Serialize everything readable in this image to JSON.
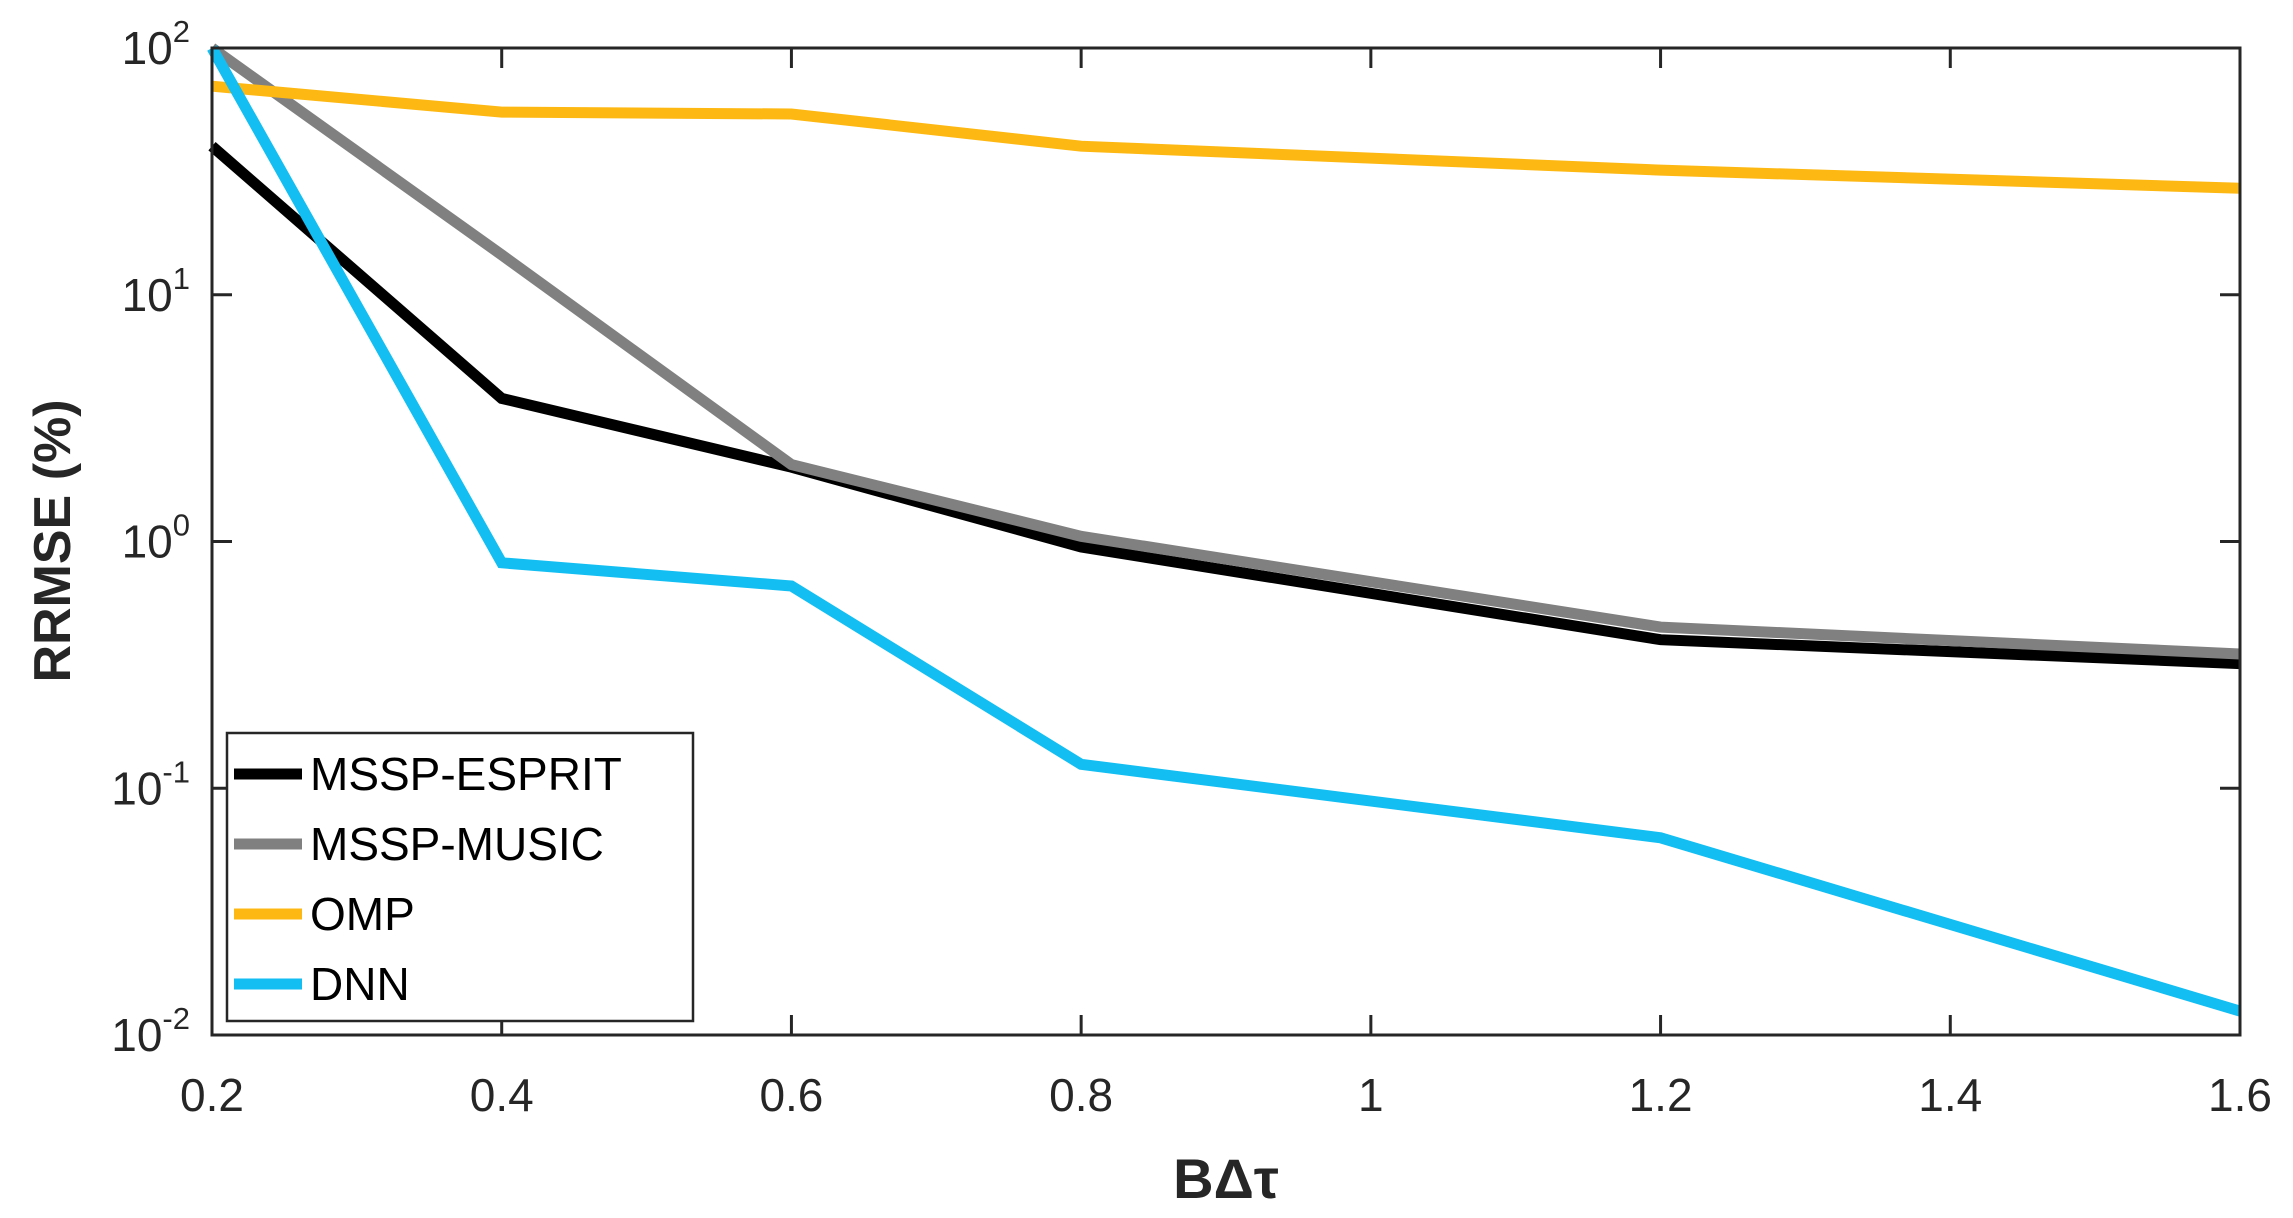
{
  "chart_data": {
    "type": "line",
    "title": "",
    "xlabel": "BΔτ",
    "ylabel": "RRMSE (%)",
    "y_scale": "log",
    "xlim": [
      0.2,
      1.6
    ],
    "ylim": [
      0.01,
      100
    ],
    "x": [
      0.2,
      0.4,
      0.6,
      0.8,
      1.2,
      1.6
    ],
    "x_ticks": [
      "0.2",
      "0.4",
      "0.6",
      "0.8",
      "1",
      "1.2",
      "1.4",
      "1.6"
    ],
    "x_tick_values": [
      0.2,
      0.4,
      0.6,
      0.8,
      1.0,
      1.2,
      1.4,
      1.6
    ],
    "y_tick_values": [
      0.01,
      0.1,
      1,
      10,
      100
    ],
    "y_ticks": [
      {
        "base": "10",
        "exp": "-2"
      },
      {
        "base": "10",
        "exp": "-1"
      },
      {
        "base": "10",
        "exp": "0"
      },
      {
        "base": "10",
        "exp": "1"
      },
      {
        "base": "10",
        "exp": "2"
      }
    ],
    "grid": false,
    "legend_position": "bottom-left",
    "series": [
      {
        "name": "MSSP-ESPRIT",
        "color": "#000000",
        "values": [
          40,
          3.8,
          2.0,
          0.95,
          0.4,
          0.32
        ]
      },
      {
        "name": "MSSP-MUSIC",
        "color": "#808080",
        "values": [
          100,
          14.5,
          2.05,
          1.05,
          0.45,
          0.35
        ]
      },
      {
        "name": "OMP",
        "color": "#FDB813",
        "values": [
          70,
          55,
          54,
          40,
          32,
          27
        ]
      },
      {
        "name": "DNN",
        "color": "#12BEF2",
        "values": [
          100,
          0.82,
          0.66,
          0.125,
          0.063,
          0.0125
        ]
      }
    ]
  }
}
